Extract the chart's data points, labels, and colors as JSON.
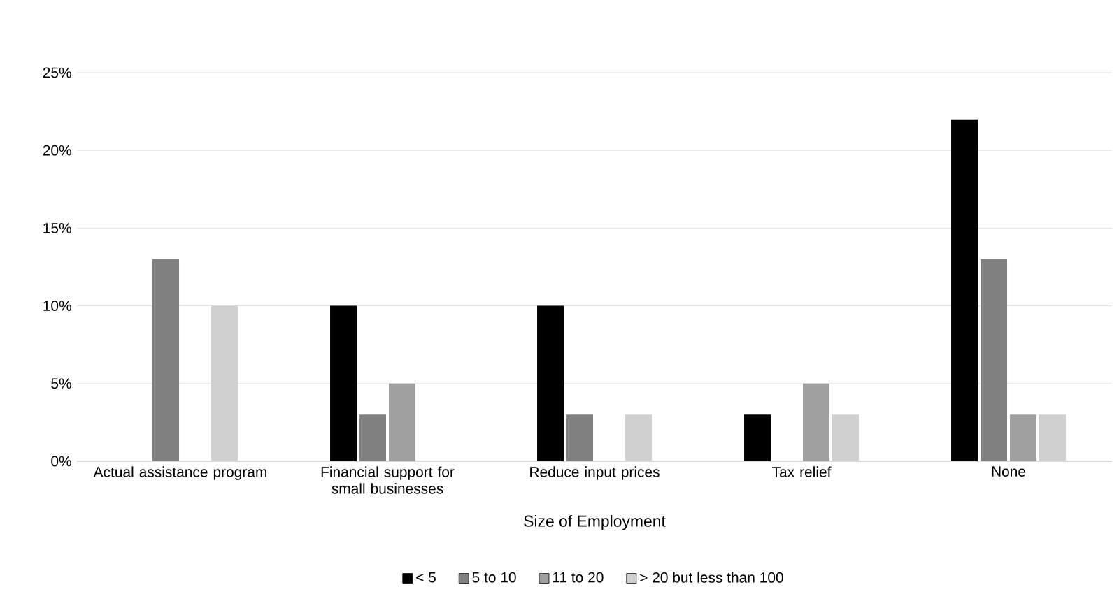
{
  "chart_data": {
    "type": "bar",
    "xlabel": "Size of Employment",
    "categories": [
      "Actual assistance program",
      "Financial support for small businesses",
      "Reduce input prices",
      "Tax relief",
      "None"
    ],
    "series": [
      {
        "name": "< 5",
        "color": "#000000",
        "values": [
          0,
          10,
          10,
          3,
          22
        ]
      },
      {
        "name": "5 to 10",
        "color": "#808080",
        "values": [
          13,
          3,
          3,
          0,
          13
        ]
      },
      {
        "name": "11 to 20",
        "color": "#a0a0a0",
        "values": [
          0,
          5,
          0,
          5,
          3
        ]
      },
      {
        "name": "> 20 but less than 100",
        "color": "#d0d0d0",
        "values": [
          10,
          0,
          3,
          3,
          3
        ]
      }
    ],
    "ylim": [
      0,
      25
    ],
    "yticks": [
      {
        "value": 0,
        "label": "0%"
      },
      {
        "value": 5,
        "label": "5%"
      },
      {
        "value": 10,
        "label": "10%"
      },
      {
        "value": 15,
        "label": "15%"
      },
      {
        "value": 20,
        "label": "20%"
      },
      {
        "value": 25,
        "label": "25%"
      }
    ],
    "grid": "y",
    "legend": "bottom"
  }
}
